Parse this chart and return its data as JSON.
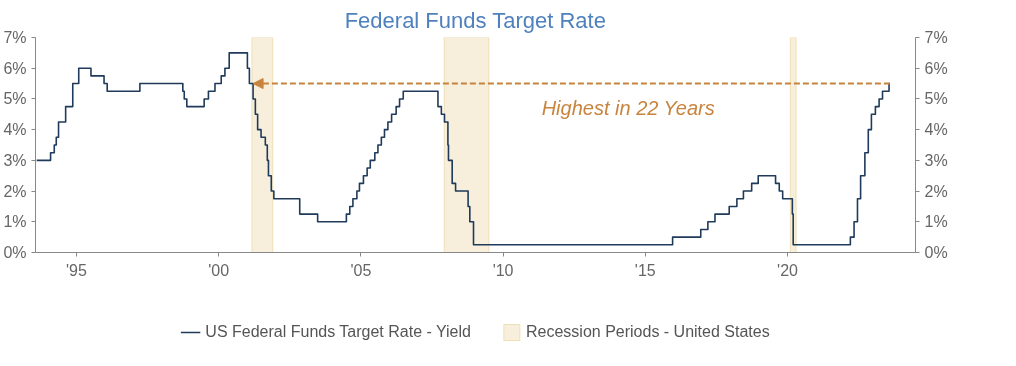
{
  "chart_data": {
    "type": "step",
    "title": "Federal Funds Target Rate",
    "x": [
      1993.6,
      1994.09,
      1994.22,
      1994.29,
      1994.37,
      1994.62,
      1994.87,
      1995.08,
      1995.51,
      1995.97,
      1996.08,
      1997.23,
      1998.74,
      1998.79,
      1998.88,
      1999.49,
      1999.64,
      1999.87,
      2000.09,
      2000.22,
      2000.37,
      2001.01,
      2001.08,
      2001.21,
      2001.29,
      2001.37,
      2001.49,
      2001.64,
      2001.71,
      2001.75,
      2001.85,
      2001.94,
      2002.85,
      2003.48,
      2004.49,
      2004.61,
      2004.72,
      2004.86,
      2004.95,
      2005.09,
      2005.22,
      2005.33,
      2005.49,
      2005.6,
      2005.72,
      2005.83,
      2005.95,
      2006.08,
      2006.24,
      2006.36,
      2006.49,
      2007.71,
      2007.83,
      2007.94,
      2008.06,
      2008.08,
      2008.21,
      2008.33,
      2008.77,
      2008.83,
      2008.96,
      2015.96,
      2016.95,
      2017.2,
      2017.45,
      2017.95,
      2018.22,
      2018.45,
      2018.74,
      2018.97,
      2019.58,
      2019.71,
      2019.83,
      2020.17,
      2020.2,
      2022.21,
      2022.34,
      2022.46,
      2022.57,
      2022.72,
      2022.84,
      2022.95,
      2023.09,
      2023.22,
      2023.34,
      2023.57,
      2023.6
    ],
    "series": [
      {
        "name": "US Federal Funds Target Rate - Yield",
        "color": "#1f3a5a",
        "values": [
          3.0,
          3.25,
          3.5,
          3.75,
          4.25,
          4.75,
          5.5,
          6.0,
          5.75,
          5.5,
          5.25,
          5.5,
          5.25,
          5.0,
          4.75,
          5.0,
          5.25,
          5.5,
          5.75,
          6.0,
          6.5,
          6.0,
          5.5,
          5.0,
          4.5,
          4.0,
          3.75,
          3.5,
          3.0,
          2.5,
          2.0,
          1.75,
          1.25,
          1.0,
          1.25,
          1.5,
          1.75,
          2.0,
          2.25,
          2.5,
          2.75,
          3.0,
          3.25,
          3.5,
          3.75,
          4.0,
          4.25,
          4.5,
          4.75,
          5.0,
          5.25,
          4.75,
          4.5,
          4.25,
          3.5,
          3.0,
          2.25,
          2.0,
          1.5,
          1.0,
          0.25,
          0.5,
          0.75,
          1.0,
          1.25,
          1.5,
          1.75,
          2.0,
          2.25,
          2.5,
          2.25,
          2.0,
          1.75,
          1.25,
          0.25,
          0.5,
          1.0,
          1.75,
          2.5,
          3.25,
          4.0,
          4.5,
          4.75,
          5.0,
          5.25,
          5.5,
          5.5
        ]
      }
    ],
    "bands": [
      {
        "axis": "x",
        "from": 2001.17,
        "to": 2001.9,
        "label": "Recession Periods - United States",
        "color": "#f7efdc"
      },
      {
        "axis": "x",
        "from": 2007.93,
        "to": 2009.5,
        "color": "#f7efdc"
      },
      {
        "axis": "x",
        "from": 2020.1,
        "to": 2020.3,
        "color": "#f7efdc"
      }
    ],
    "annotations": [
      "Highest in 22 Years"
    ],
    "xlim": [
      1993.56,
      2024.5
    ],
    "xticks": [
      {
        "value": 1995,
        "label": "'95"
      },
      {
        "value": 2000,
        "label": "'00"
      },
      {
        "value": 2005,
        "label": "'05"
      },
      {
        "value": 2010,
        "label": "'10"
      },
      {
        "value": 2015,
        "label": "'15"
      },
      {
        "value": 2020,
        "label": "'20"
      }
    ],
    "ylim": [
      0,
      7
    ],
    "yticks": [
      {
        "value": 0,
        "label": "0%"
      },
      {
        "value": 1,
        "label": "1%"
      },
      {
        "value": 2,
        "label": "2%"
      },
      {
        "value": 3,
        "label": "3%"
      },
      {
        "value": 4,
        "label": "4%"
      },
      {
        "value": 5,
        "label": "5%"
      },
      {
        "value": 6,
        "label": "6%"
      },
      {
        "value": 7,
        "label": "7%"
      }
    ],
    "y2lim": [
      0,
      7
    ],
    "y2ticks": [
      {
        "value": 0,
        "label": "0%"
      },
      {
        "value": 1,
        "label": "1%"
      },
      {
        "value": 2,
        "label": "2%"
      },
      {
        "value": 3,
        "label": "3%"
      },
      {
        "value": 4,
        "label": "4%"
      },
      {
        "value": 5,
        "label": "5%"
      },
      {
        "value": 6,
        "label": "6%"
      },
      {
        "value": 7,
        "label": "7%"
      }
    ],
    "grid": false,
    "legend": "bottom"
  }
}
